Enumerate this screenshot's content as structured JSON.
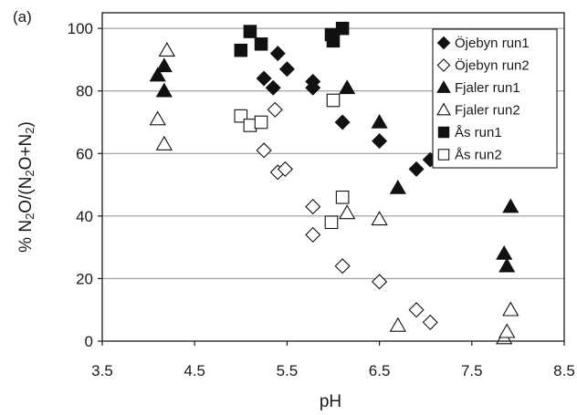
{
  "chart_data": {
    "type": "scatter",
    "panel_label": "(a)",
    "title": "",
    "xlabel": "pH",
    "ylabel_parts": [
      "% N",
      "2",
      "O/(N",
      "2",
      "O+N",
      "2",
      ")"
    ],
    "xlim": [
      3.5,
      8.5
    ],
    "ylim": [
      0,
      105
    ],
    "xticks": [
      "3.5",
      "4.5",
      "5.5",
      "6.5",
      "7.5",
      "8.5"
    ],
    "yticks": [
      "0",
      "20",
      "40",
      "60",
      "80",
      "100"
    ],
    "grid": "horizontal",
    "legend_position": "top-right",
    "series": [
      {
        "name": "Öjebyn run1",
        "marker": "diamond",
        "filled": true,
        "points": [
          [
            5.25,
            84
          ],
          [
            5.35,
            81
          ],
          [
            5.4,
            92
          ],
          [
            5.5,
            87
          ],
          [
            5.78,
            81
          ],
          [
            5.78,
            83
          ],
          [
            6.1,
            70
          ],
          [
            6.5,
            64
          ],
          [
            6.9,
            55
          ],
          [
            7.05,
            58
          ]
        ]
      },
      {
        "name": "Öjebyn run2",
        "marker": "diamond",
        "filled": false,
        "points": [
          [
            5.25,
            61
          ],
          [
            5.37,
            74
          ],
          [
            5.4,
            54
          ],
          [
            5.48,
            55
          ],
          [
            5.78,
            43
          ],
          [
            5.78,
            34
          ],
          [
            6.1,
            24
          ],
          [
            6.5,
            19
          ],
          [
            6.9,
            10
          ],
          [
            7.05,
            6
          ]
        ]
      },
      {
        "name": "Fjaler run1",
        "marker": "triangle",
        "filled": true,
        "points": [
          [
            4.1,
            85
          ],
          [
            4.17,
            88
          ],
          [
            4.17,
            80
          ],
          [
            6.15,
            81
          ],
          [
            6.5,
            70
          ],
          [
            6.7,
            49
          ],
          [
            7.85,
            28
          ],
          [
            7.88,
            24
          ],
          [
            7.92,
            43
          ]
        ]
      },
      {
        "name": "Fjaler run2",
        "marker": "triangle",
        "filled": false,
        "points": [
          [
            4.1,
            71
          ],
          [
            4.17,
            63
          ],
          [
            4.2,
            93
          ],
          [
            6.15,
            41
          ],
          [
            6.5,
            39
          ],
          [
            6.7,
            5
          ],
          [
            7.85,
            1
          ],
          [
            7.88,
            3
          ],
          [
            7.92,
            10
          ]
        ]
      },
      {
        "name": "Ås run1",
        "marker": "square",
        "filled": true,
        "points": [
          [
            5.0,
            93
          ],
          [
            5.1,
            99
          ],
          [
            5.22,
            95
          ],
          [
            5.98,
            98
          ],
          [
            6.0,
            96
          ],
          [
            6.1,
            100
          ]
        ]
      },
      {
        "name": "Ås run2",
        "marker": "square",
        "filled": false,
        "points": [
          [
            5.0,
            72
          ],
          [
            5.1,
            69
          ],
          [
            5.22,
            70
          ],
          [
            5.98,
            38
          ],
          [
            6.0,
            77
          ],
          [
            6.1,
            46
          ]
        ]
      }
    ]
  }
}
